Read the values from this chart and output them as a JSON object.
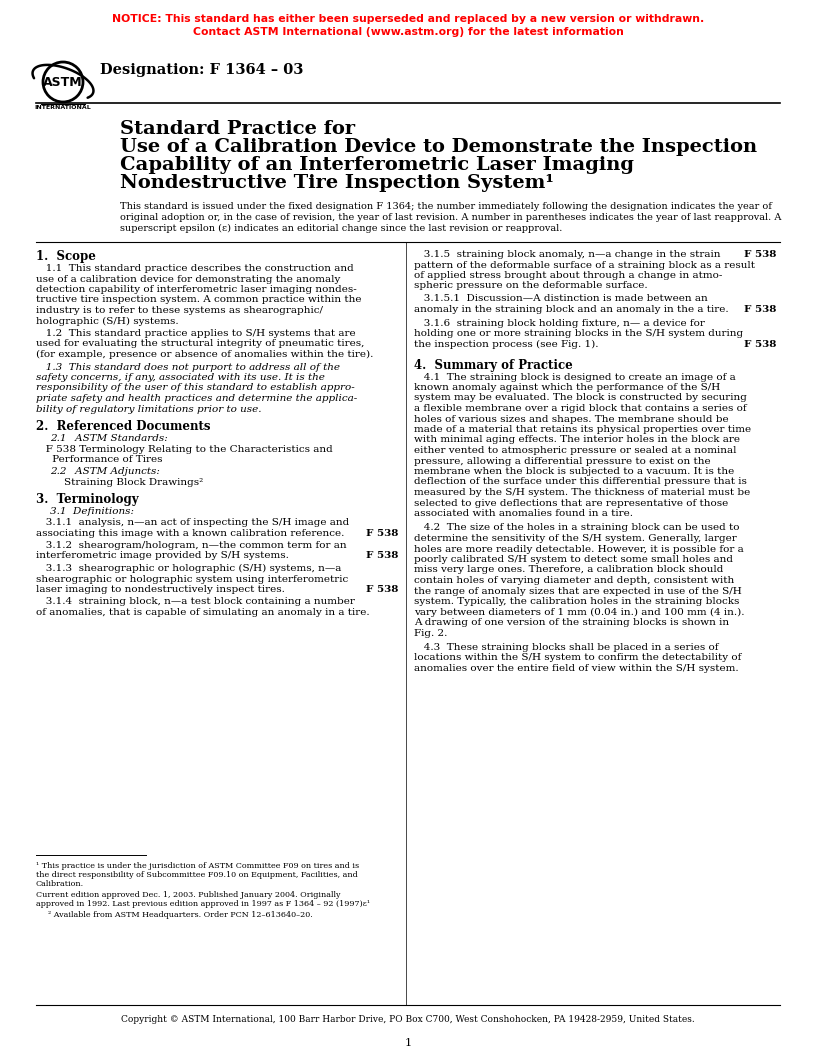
{
  "notice_line1": "NOTICE: This standard has either been superseded and replaced by a new version or withdrawn.",
  "notice_line2": "Contact ASTM International (www.astm.org) for the latest information",
  "notice_color": "#FF0000",
  "designation": "Designation: F 1364 – 03",
  "title_lines": [
    "Standard Practice for",
    "Use of a Calibration Device to Demonstrate the Inspection",
    "Capability of an Interferometric Laser Imaging",
    "Nondestructive Tire Inspection System¹"
  ],
  "issued_lines": [
    "This standard is issued under the fixed designation F 1364; the number immediately following the designation indicates the year of",
    "original adoption or, in the case of revision, the year of last revision. A number in parentheses indicates the year of last reapproval. A",
    "superscript epsilon (ε) indicates an editorial change since the last revision or reapproval."
  ],
  "bg_color": "#FFFFFF",
  "text_color": "#000000",
  "notice_color2": "#FF0000",
  "copyright": "Copyright © ASTM International, 100 Barr Harbor Drive, PO Box C700, West Conshohocken, PA 19428-2959, United States.",
  "page_num": "1"
}
